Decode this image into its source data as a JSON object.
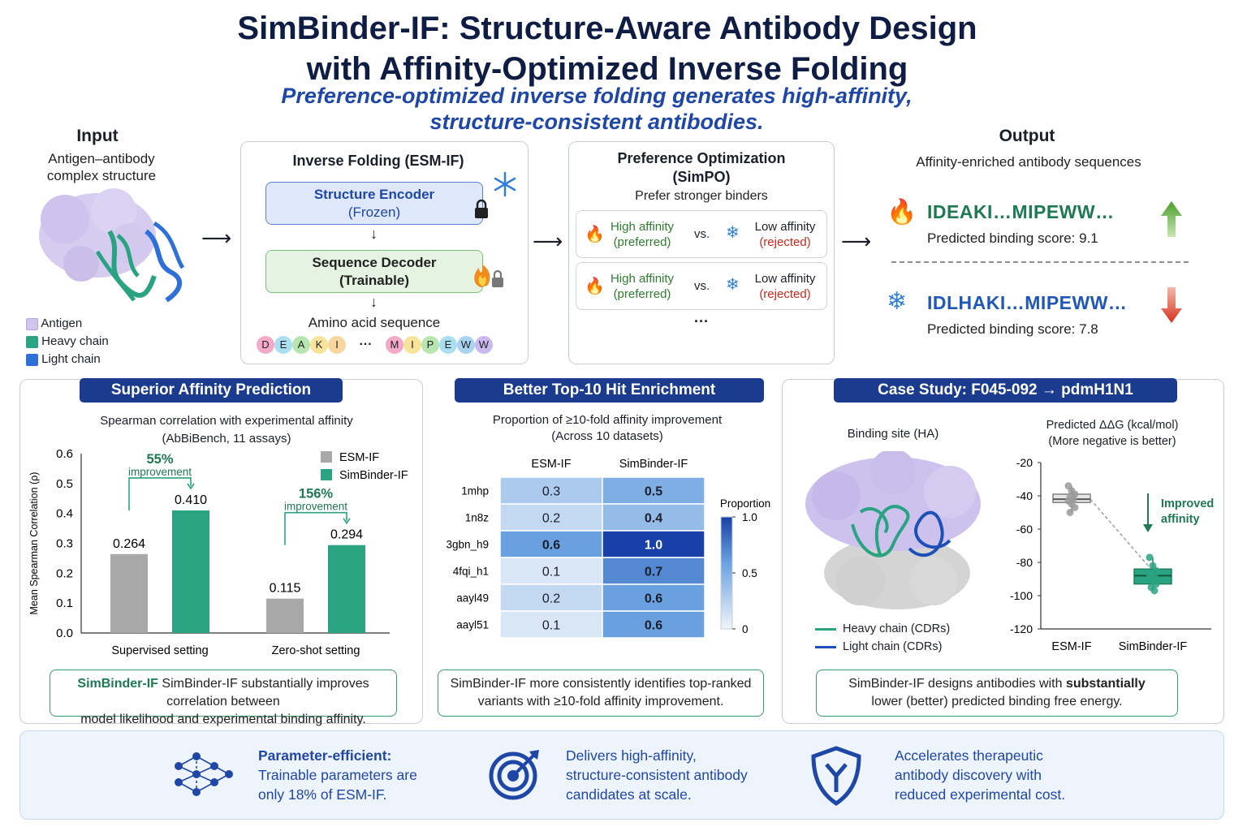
{
  "header": {
    "title_line1": "SimBinder-IF: Structure-Aware Antibody Design",
    "title_line2": "with Affinity-Optimized Inverse Folding",
    "subtitle_line1": "Preference-optimized inverse folding generates high-affinity,",
    "subtitle_line2": "structure-consistent antibodies."
  },
  "input": {
    "heading": "Input",
    "desc_line1": "Antigen–antibody",
    "desc_line2": "complex structure",
    "legend": [
      {
        "label": "Antigen",
        "color": "#cfc6ee"
      },
      {
        "label": "Heavy chain",
        "color": "#2aa383"
      },
      {
        "label": "Light chain",
        "color": "#2f6fd8"
      }
    ]
  },
  "inverse_folding": {
    "heading": "Inverse Folding (ESM-IF)",
    "encoder_line1": "Structure Encoder",
    "encoder_line2": "(Frozen)",
    "decoder_line1": "Sequence Decoder",
    "decoder_line2": "(Trainable)",
    "output_label": "Amino acid sequence",
    "aa_left": [
      "D",
      "E",
      "A",
      "K",
      "I"
    ],
    "aa_right": [
      "M",
      "I",
      "P",
      "E",
      "W",
      "W"
    ],
    "ellipsis": "···"
  },
  "preference": {
    "heading_line1": "Preference Optimization",
    "heading_line2": "(SimPO)",
    "sub": "Prefer stronger binders",
    "pairs": [
      {
        "left1": "High affinity",
        "left2": "(preferred)",
        "vs": "vs.",
        "right1": "Low affinity",
        "right2": "(rejected)"
      },
      {
        "left1": "High affinity",
        "left2": "(preferred)",
        "vs": "vs.",
        "right1": "Low affinity",
        "right2": "(rejected)"
      }
    ],
    "more": "···"
  },
  "output": {
    "heading": "Output",
    "sub": "Affinity-enriched antibody sequences",
    "seq1": "IDEAKI…MIPEWW…",
    "score1": "Predicted binding score: 9.1",
    "seq2": "IDLHAKI…MIPEWW…",
    "score2": "Predicted binding score: 7.8"
  },
  "panel1": {
    "banner": "Superior Affinity Prediction",
    "chart_title_line1": "Spearman correlation with experimental affinity",
    "chart_title_line2": "(AbBiBench, 11 assays)",
    "note_line1": "SimBinder-IF substantially improves correlation between",
    "note_line2": "model likelihood and experimental binding affinity.",
    "improvements": [
      {
        "pct": "55%",
        "word": "improvement"
      },
      {
        "pct": "156%",
        "word": "improvement"
      }
    ]
  },
  "panel2": {
    "banner": "Better Top-10 Hit Enrichment",
    "chart_title_line1": "Proportion of ≥10-fold affinity improvement",
    "chart_title_line2": "(Across 10 datasets)",
    "colorbar_label": "Proportion",
    "note_line1": "SimBinder-IF more consistently identifies top-ranked",
    "note_line2": "variants with ≥10-fold affinity improvement."
  },
  "panel3": {
    "banner": "Case Study: F045-092 → pdmH1N1",
    "site_label": "Binding site (HA)",
    "legend": [
      {
        "label": "Heavy chain (CDRs)",
        "color": "#2aa383"
      },
      {
        "label": "Light chain (CDRs)",
        "color": "#1f4fb8"
      }
    ],
    "chart_title_line1": "Predicted ΔΔG (kcal/mol)",
    "chart_title_line2": "(More negative is better)",
    "annot_line1": "Improved",
    "annot_line2": "affinity",
    "note_line1_a": "SimBinder-IF designs antibodies with ",
    "note_line1_b": "substantially",
    "note_line2": "lower (better) predicted binding free energy."
  },
  "bottom": {
    "item1_bold": "Parameter-efficient:",
    "item1_line2": "Trainable parameters are",
    "item1_line3": "only 18% of ESM-IF.",
    "item2_line1": "Delivers high-affinity,",
    "item2_line2": "structure-consistent antibody",
    "item2_line3": "candidates at scale.",
    "item3_line1": "Accelerates therapeutic",
    "item3_line2": "antibody discovery with",
    "item3_line3": "reduced experimental cost."
  },
  "chart_data": [
    {
      "type": "bar",
      "title": "Spearman correlation with experimental affinity",
      "subtitle": "(AbBiBench, 11 assays)",
      "ylabel": "Mean Spearman Correlation (ρ)",
      "categories": [
        "Supervised setting",
        "Zero-shot setting"
      ],
      "series": [
        {
          "name": "ESM-IF",
          "color": "#a8a8a8",
          "values": [
            0.264,
            0.115
          ]
        },
        {
          "name": "SimBinder-IF",
          "color": "#2aa383",
          "values": [
            0.41,
            0.294
          ]
        }
      ],
      "ylim": [
        0,
        0.6
      ],
      "yticks": [
        "0.0",
        "0.1",
        "0.2",
        "0.3",
        "0.4",
        "0.5",
        "0.6"
      ],
      "bar_labels": [
        [
          "0.264",
          "0.115"
        ],
        [
          "0.410",
          "0.294"
        ]
      ],
      "legend": "top-right"
    },
    {
      "type": "heatmap",
      "title": "Proportion of ≥10-fold affinity improvement",
      "subtitle": "(Across 10 datasets)",
      "columns": [
        "ESM-IF",
        "SimBinder-IF"
      ],
      "rows": [
        "1mhp",
        "1n8z",
        "3gbn_h9",
        "4fqi_h1",
        "aayl49",
        "aayl51"
      ],
      "values": [
        [
          0.3,
          0.5
        ],
        [
          0.2,
          0.4
        ],
        [
          0.6,
          1.0
        ],
        [
          0.1,
          0.7
        ],
        [
          0.2,
          0.6
        ],
        [
          0.1,
          0.6
        ]
      ],
      "labels": [
        [
          "0.3",
          "0.5"
        ],
        [
          "0.2",
          "0.4"
        ],
        [
          "0.6",
          "1.0"
        ],
        [
          "0.1",
          "0.7"
        ],
        [
          "0.2",
          "0.6"
        ],
        [
          "0.1",
          "0.6"
        ]
      ],
      "colorbar_ticks": [
        "1.0",
        "0.5",
        "0"
      ],
      "vrange": [
        0,
        1
      ]
    },
    {
      "type": "box",
      "title": "Predicted ΔΔG (kcal/mol)",
      "subtitle": "(More negative is better)",
      "categories": [
        "ESM-IF",
        "SimBinder-IF"
      ],
      "ylim": [
        -120,
        -20
      ],
      "yticks": [
        "-20",
        "-40",
        "-60",
        "-80",
        "-100",
        "-120"
      ],
      "boxes": [
        {
          "name": "ESM-IF",
          "color": "#a8a8a8",
          "q1": -44,
          "median": -42,
          "q3": -39,
          "whisker_low": -50,
          "whisker_high": -34,
          "points": [
            -34,
            -37,
            -39,
            -41,
            -42,
            -43,
            -45,
            -47,
            -50
          ]
        },
        {
          "name": "SimBinder-IF",
          "color": "#2aa383",
          "q1": -93,
          "median": -88,
          "q3": -84,
          "whisker_low": -97,
          "whisker_high": -77,
          "points": [
            -77,
            -82,
            -85,
            -87,
            -88,
            -89,
            -91,
            -93,
            -95,
            -97
          ]
        }
      ]
    }
  ]
}
